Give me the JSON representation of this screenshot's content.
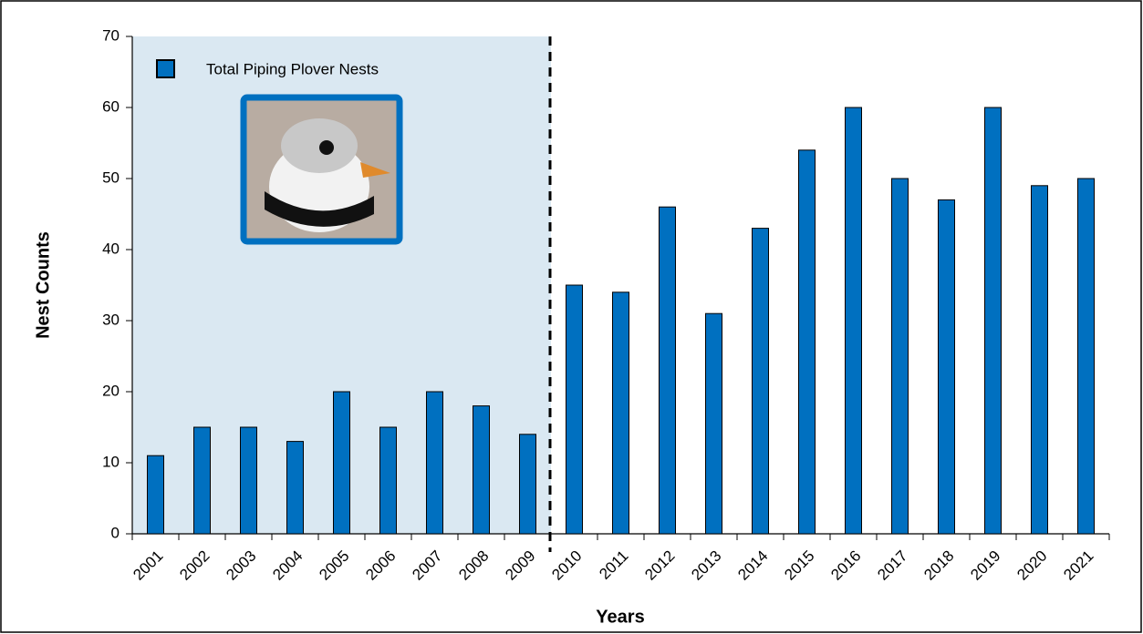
{
  "chart_data": {
    "type": "bar",
    "x_label": "Years",
    "y_label": "Nest Counts",
    "categories": [
      "2001",
      "2002",
      "2003",
      "2004",
      "2005",
      "2006",
      "2007",
      "2008",
      "2009",
      "2010",
      "2011",
      "2012",
      "2013",
      "2014",
      "2015",
      "2016",
      "2017",
      "2018",
      "2019",
      "2020",
      "2021"
    ],
    "series": [
      {
        "name": "Total Piping Plover Nests",
        "color": "#0070c0",
        "values": [
          11,
          15,
          15,
          13,
          20,
          15,
          20,
          18,
          14,
          35,
          34,
          46,
          31,
          43,
          54,
          60,
          50,
          47,
          60,
          49,
          50
        ]
      }
    ],
    "ylim": [
      0,
      70
    ],
    "yticks": [
      0,
      10,
      20,
      30,
      40,
      50,
      60,
      70
    ],
    "grid": false,
    "legend": "top-left"
  }
}
